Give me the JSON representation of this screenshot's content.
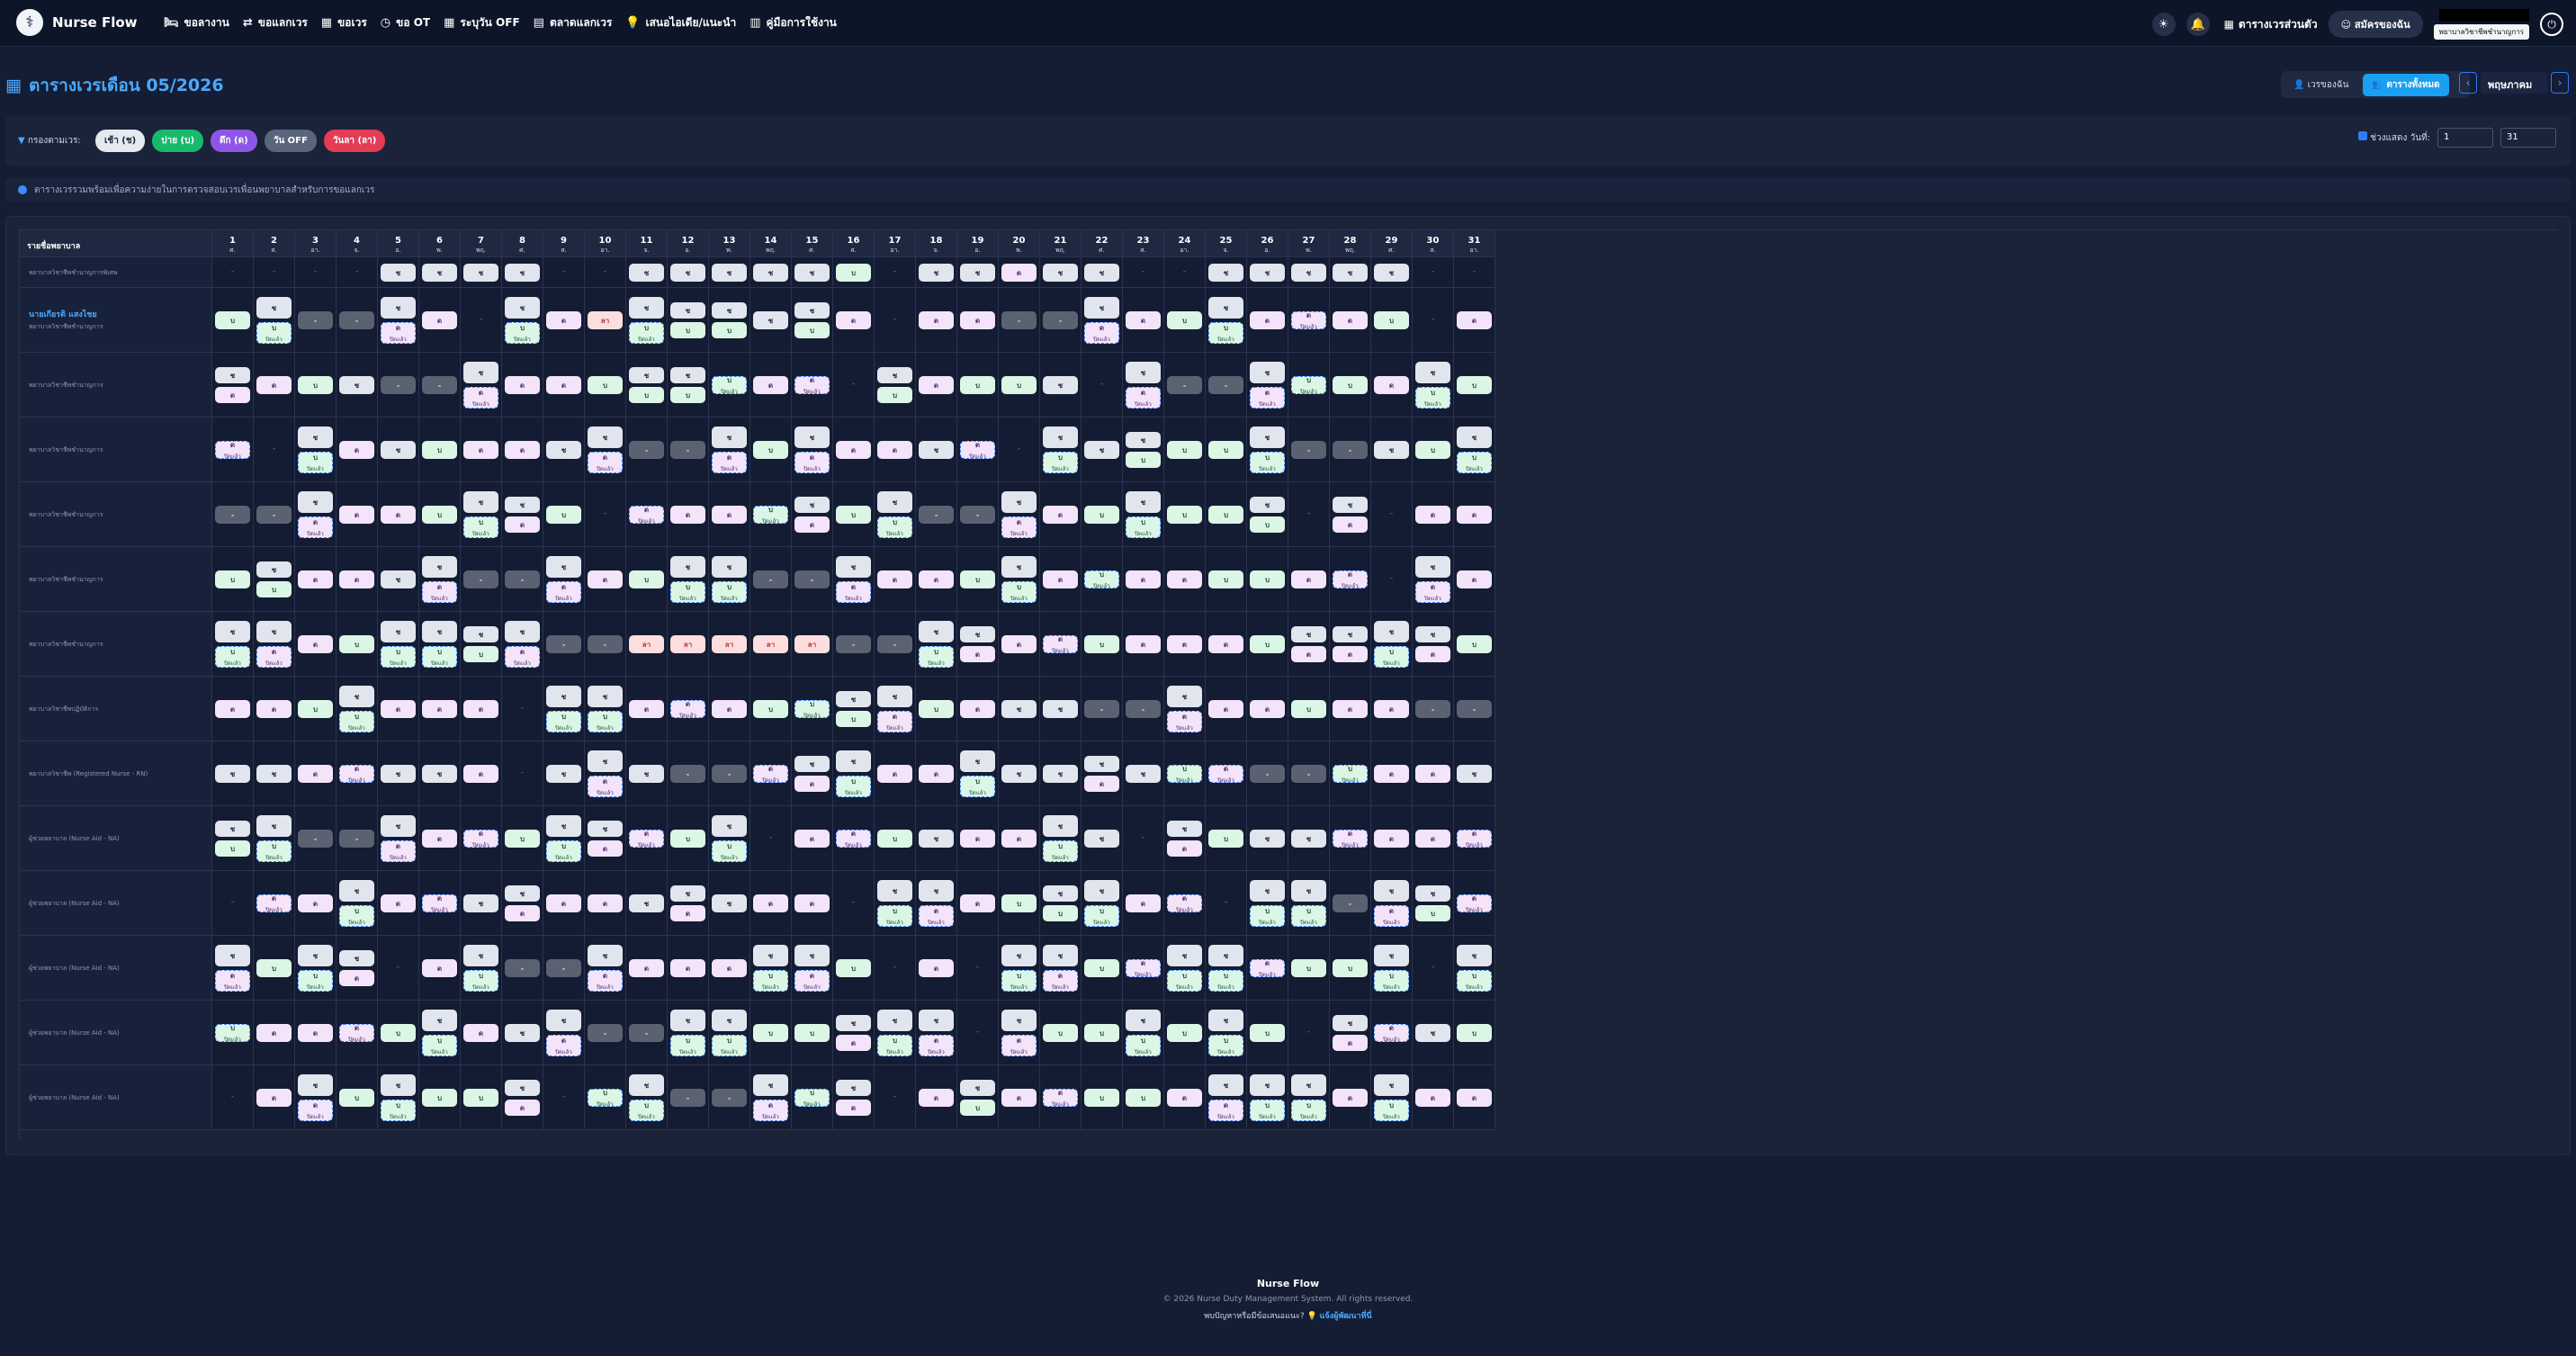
{
  "app": {
    "brand": "Nurse Flow",
    "logo_icon": "nurse-logo-icon"
  },
  "nav": {
    "menu": [
      {
        "icon": "bed-icon",
        "glyph": "🛏",
        "label": "ขอลางาน"
      },
      {
        "icon": "swap-icon",
        "glyph": "⇄",
        "label": "ขอแลกเวร"
      },
      {
        "icon": "calendar-icon",
        "glyph": "▦",
        "label": "ขอเวร"
      },
      {
        "icon": "clock-icon",
        "glyph": "◷",
        "label": "ขอ OT"
      },
      {
        "icon": "calendar-off-icon",
        "glyph": "▦",
        "label": "ระบุวัน OFF"
      },
      {
        "icon": "market-icon",
        "glyph": "▤",
        "label": "ตลาดแลกเวร"
      },
      {
        "icon": "lightbulb-icon",
        "glyph": "💡",
        "label": "เสนอไอเดีย/แนะนำ"
      },
      {
        "icon": "book-icon",
        "glyph": "▥",
        "label": "คู่มือการใช้งาน"
      }
    ],
    "personal_schedule": "ตารางเวรส่วนตัว",
    "edit_profile": "สมัครของฉัน",
    "user_tag": "พยาบาลวิชาชีพชำนาญการ"
  },
  "page": {
    "title": "ตารางเวรเดือน 05/2026",
    "view_mine": "เวรของฉัน",
    "view_all": "ตารางทั้งหมด",
    "month": "พฤษภาคม",
    "prev": "‹",
    "next": "›"
  },
  "filter": {
    "label": "กรองตามเวร:",
    "chips": [
      {
        "label": "เช้า (ช)",
        "bg": "#e5e9f0",
        "fg": "#1f2535"
      },
      {
        "label": "บ่าย (บ)",
        "bg": "#18b96a",
        "fg": "#ffffff"
      },
      {
        "label": "ดึก (ด)",
        "bg": "#8f55e8",
        "fg": "#ffffff"
      },
      {
        "label": "วัน OFF",
        "bg": "#59657c",
        "fg": "#ffffff"
      },
      {
        "label": "วันลา (ลา)",
        "bg": "#e33c55",
        "fg": "#ffffff"
      }
    ],
    "range_label": "ช่วงแสดง วันที่:",
    "range_from": "1",
    "range_to": "31"
  },
  "info": {
    "text": "ตารางเวรรวมพร้อมเพื่อความง่ายในการตรวจสอบเวรเพื่อนพยาบาลสำหรับการขอแลกเวร"
  },
  "table": {
    "name_header": "รายชื่อพยาบาล",
    "days": [
      {
        "day": "1",
        "dow": "ศ."
      },
      {
        "day": "2",
        "dow": "ส."
      },
      {
        "day": "3",
        "dow": "อา."
      },
      {
        "day": "4",
        "dow": "จ."
      },
      {
        "day": "5",
        "dow": "อ."
      },
      {
        "day": "6",
        "dow": "พ."
      },
      {
        "day": "7",
        "dow": "พฤ."
      },
      {
        "day": "8",
        "dow": "ศ."
      },
      {
        "day": "9",
        "dow": "ส."
      },
      {
        "day": "10",
        "dow": "อา."
      },
      {
        "day": "11",
        "dow": "จ."
      },
      {
        "day": "12",
        "dow": "อ."
      },
      {
        "day": "13",
        "dow": "พ."
      },
      {
        "day": "14",
        "dow": "พฤ."
      },
      {
        "day": "15",
        "dow": "ศ."
      },
      {
        "day": "16",
        "dow": "ส."
      },
      {
        "day": "17",
        "dow": "อา."
      },
      {
        "day": "18",
        "dow": "จ."
      },
      {
        "day": "19",
        "dow": "อ."
      },
      {
        "day": "20",
        "dow": "พ."
      },
      {
        "day": "21",
        "dow": "พฤ."
      },
      {
        "day": "22",
        "dow": "ศ."
      },
      {
        "day": "23",
        "dow": "ส."
      },
      {
        "day": "24",
        "dow": "อา."
      },
      {
        "day": "25",
        "dow": "จ."
      },
      {
        "day": "26",
        "dow": "อ."
      },
      {
        "day": "27",
        "dow": "พ."
      },
      {
        "day": "28",
        "dow": "พฤ."
      },
      {
        "day": "29",
        "dow": "ศ."
      },
      {
        "day": "30",
        "dow": "ส."
      },
      {
        "day": "31",
        "dow": "อา."
      }
    ],
    "tag_label": "ปิดแล้ว",
    "nurses": [
      {
        "name": "",
        "role": "พยาบาลวิชาชีพชำนาญการพิเศษ",
        "shifts": "-,-,-,-,M,M,M,M,-,-,M,M,M,M,M,A,-,M,M,N,M,M,-,-,M,M,M,M,M,-,-"
      },
      {
        "name": "นายเกียรติ แสงไชย",
        "role": "พยาบาลวิชาชีพชำนาญการ",
        "shifts": "A,M/A*,O,O,M/N*,N,-,M/A*,N,L,M/A*,M/A,M/A,M,M/A,N,-,N,N,O,O,M/N*,N,A,M/A*,N,N*,N,A,-,N"
      },
      {
        "name": "",
        "role": "พยาบาลวิชาชีพชำนาญการ",
        "shifts": "M/N,N,A,M,O,O,M/N*,N,N,A,M/A,M/A,A*,N,N*,-,M/A,N,A,A,M,-,M/N*,O,O,M/N*,A*,A,N,M/A*,A"
      },
      {
        "name": "",
        "role": "พยาบาลวิชาชีพชำนาญการ",
        "shifts": "N*,-,M/A*,N,M,A,N,N,M,M/N*,O,O,M/N*,A,M/N*,N,N,M,N*,-,M/A*,M,M/A,A,A,M/A*,O,O,M,A,M/A*"
      },
      {
        "name": "",
        "role": "พยาบาลวิชาชีพชำนาญการ",
        "shifts": "O,O,M/N*,N,N,A,M/A*,M/N,A,-,N*,N,N,A*,M/N,A,M/A*,O,O,M/N*,N,A,M/A*,A,A,M/A,-,M/N,-,N,N"
      },
      {
        "name": "",
        "role": "พยาบาลวิชาชีพชำนาญการ",
        "shifts": "A,M/A,N,N,M,M/N*,O,O,M/N*,N,A,M/A*,M/A*,O,O,M/N*,N,N,A,M/A*,N,A*,N,N,A,A,N,N*,-,M/N*,N"
      },
      {
        "name": "",
        "role": "พยาบาลวิชาชีพชำนาญการ",
        "shifts": "M/A*,M/N*,N,A,M/A*,M/A*,M/A,M/N*,O,O,L,L,L,L,L,O,O,M/A*,M/N,N,N*,A,N,N,N,A,M/N,M/N,M/A*,M/N,A"
      },
      {
        "name": "",
        "role": "พยาบาลวิชาชีพปฏิบัติการ",
        "shifts": "N,N,A,M/A*,N,N,N,-,M/A*,M/A*,N,N*,N,A,A*,M/A,M/N*,A,N,M,M,O,O,M/N*,N,N,A,N,N,O,O"
      },
      {
        "name": "",
        "role": "พยาบาลวิชาชีพ (Registered Nurse - RN)",
        "shifts": "M,M,N,N*,M,M,N,-,M,M/N*,M,O,O,N*,M/N,M/A*,N,N,M/A*,M,M,M/N,M,A*,N*,O,O,A*,N,N,M"
      },
      {
        "name": "",
        "role": "ผู้ช่วยพยาบาล (Nurse Aid - NA)",
        "shifts": "M/A,M/A*,O,O,M/N*,N,N*,A,M/A*,M/N,N*,A,M/A*,-,N,N*,A,M,N,N,M/A*,M,-,M/N,A,M,M,N*,N,N,N*"
      },
      {
        "name": "",
        "role": "ผู้ช่วยพยาบาล (Nurse Aid - NA)",
        "shifts": "-,N*,N,M/A*,N,N*,M,M/N,N,N,M,M/N,M,N,N,-,M/A*,M/N*,N,A,M/A,M/A*,N,N*,-,M/A*,M/A*,O,M/N*,M/A,N*"
      },
      {
        "name": "",
        "role": "ผู้ช่วยพยาบาล (Nurse Aid - NA)",
        "shifts": "M/N*,A,M/A*,M/N,-,N,M/A*,O,O,M/N*,N,N,N,M/A*,M/N*,A,-,N,-,M/A*,M/N*,A,N*,M/A*,M/A*,N*,A,A,M/A*,-,M/A*"
      },
      {
        "name": "",
        "role": "ผู้ช่วยพยาบาล (Nurse Aid - NA)",
        "shifts": "A*,N,N,N*,A,M/A*,N,M,M/N*,O,O,M/A*,M/A*,A,A,M/N,M/A*,M/N*,-,M/N*,A,A,M/A*,A,M/A*,A,-,M/N,N*,M,A"
      },
      {
        "name": "",
        "role": "ผู้ช่วยพยาบาล (Nurse Aid - NA)",
        "shifts": "-,N,M/N*,A,M/A*,A,A,M/N,-,A*,M/A*,O,O,M/N*,A*,M/N,-,N,M/A,N,N*,A,A,N,M/N*,M/A*,M/A*,N,M/A*,N,N"
      }
    ]
  },
  "shift_labels": {
    "M": "ช",
    "A": "บ",
    "N": "ด",
    "O": "-",
    "L": "ลา"
  },
  "colors": {
    "accent": "#1aa0f0",
    "morning": "#e1e5ed",
    "afternoon": "#dcf6e6",
    "night": "#f3e4fa",
    "off": "#5a6272",
    "leave": "#fddede"
  },
  "footer": {
    "brand": "Nurse Flow",
    "copyright": "© 2026 Nurse Duty Management System. All rights reserved.",
    "help_text": "พบปัญหาหรือมีข้อเสนอแนะ?",
    "help_link": "แจ้งผู้พัฒนาที่นี่"
  }
}
